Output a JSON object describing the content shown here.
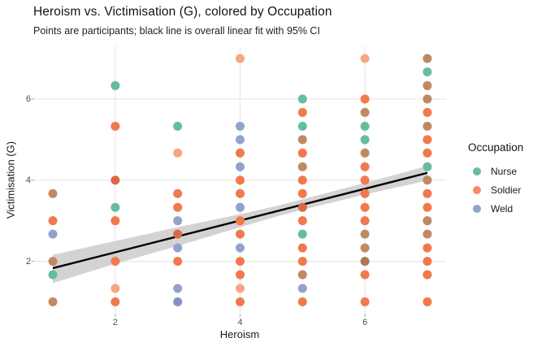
{
  "chart_data": {
    "type": "scatter",
    "title": "Heroism vs. Victimisation (G), colored by Occupation",
    "subtitle": "Points are participants; black line is overall linear fit with 95% CI",
    "xlabel": "Heroism",
    "ylabel": "Victimisation (G)",
    "xlim": [
      0.7,
      7.3
    ],
    "ylim": [
      0.7,
      7.3
    ],
    "x_ticks": [
      2,
      4,
      6
    ],
    "x_tick_labels": [
      "2",
      "4",
      "6"
    ],
    "y_ticks": [
      2,
      4,
      6
    ],
    "y_tick_labels": [
      "2",
      "4",
      "6"
    ],
    "grid": "major-only",
    "background": "#ffffff",
    "gridline_color": "#e8e8e8",
    "tick_mark_color": "#b3b3b3",
    "legend": {
      "title": "Occupation",
      "position": "right",
      "entries": [
        {
          "label": "Nurse",
          "color": "#66BD9D"
        },
        {
          "label": "Soldier",
          "color": "#F58A64"
        },
        {
          "label": "Weld",
          "color": "#92A2CD"
        }
      ]
    },
    "point_style": {
      "radius": 5.5,
      "shape": "circle"
    },
    "palette": {
      "N": {
        "occupation": "Nurse",
        "fill": "#66BD9D"
      },
      "S": {
        "occupation": "Soldier",
        "fill": "#F0794E"
      },
      "SL": {
        "occupation": "Soldier (lighter, single point)",
        "fill": "#F8A583"
      },
      "S2": {
        "occupation": "Soldier (darker, overplotted)",
        "fill": "#DC6845"
      },
      "W": {
        "occupation": "Weld",
        "fill": "#92A2CD"
      },
      "W2": {
        "occupation": "Weld (darker, overplotted)",
        "fill": "#8193C4"
      },
      "B": {
        "occupation": "Nurse+Soldier overlap",
        "fill": "#BE8A63"
      },
      "B2": {
        "occupation": "Nurse+Soldier overlap (darker)",
        "fill": "#AA7A52"
      }
    },
    "points": [
      [
        1,
        3.67,
        "B"
      ],
      [
        1,
        3,
        "S"
      ],
      [
        1,
        2.67,
        "W"
      ],
      [
        1,
        2,
        "B"
      ],
      [
        1,
        1.67,
        "N"
      ],
      [
        1,
        1,
        "B"
      ],
      [
        2,
        6.33,
        "N"
      ],
      [
        2,
        5.33,
        "S"
      ],
      [
        2,
        4,
        "S2"
      ],
      [
        2,
        3.33,
        "N"
      ],
      [
        2,
        3,
        "S"
      ],
      [
        2,
        2,
        "S"
      ],
      [
        2,
        1.33,
        "SL"
      ],
      [
        2,
        1,
        "S"
      ],
      [
        3,
        5.33,
        "N"
      ],
      [
        3,
        4.67,
        "SL"
      ],
      [
        3,
        3.67,
        "S"
      ],
      [
        3,
        3.33,
        "S"
      ],
      [
        3,
        3,
        "W"
      ],
      [
        3,
        2.67,
        "S2"
      ],
      [
        3,
        2.33,
        "W"
      ],
      [
        3,
        2,
        "S"
      ],
      [
        3,
        1.33,
        "W"
      ],
      [
        3,
        1,
        "W2"
      ],
      [
        4,
        7,
        "SL"
      ],
      [
        4,
        5.33,
        "W"
      ],
      [
        4,
        5,
        "W"
      ],
      [
        4,
        4.67,
        "S"
      ],
      [
        4,
        4.33,
        "W"
      ],
      [
        4,
        4,
        "S"
      ],
      [
        4,
        3.67,
        "S"
      ],
      [
        4,
        3.33,
        "W"
      ],
      [
        4,
        3,
        "S"
      ],
      [
        4,
        2.67,
        "S"
      ],
      [
        4,
        2.33,
        "W"
      ],
      [
        4,
        2,
        "S"
      ],
      [
        4,
        1.67,
        "S"
      ],
      [
        4,
        1.33,
        "SL"
      ],
      [
        4,
        1,
        "S"
      ],
      [
        5,
        6,
        "N"
      ],
      [
        5,
        5.67,
        "S"
      ],
      [
        5,
        5.33,
        "N"
      ],
      [
        5,
        5,
        "B"
      ],
      [
        5,
        4.67,
        "S"
      ],
      [
        5,
        4.33,
        "B"
      ],
      [
        5,
        4,
        "S"
      ],
      [
        5,
        3.67,
        "S"
      ],
      [
        5,
        3.33,
        "S2"
      ],
      [
        5,
        3,
        "S"
      ],
      [
        5,
        2.67,
        "N"
      ],
      [
        5,
        2.33,
        "S"
      ],
      [
        5,
        2,
        "S"
      ],
      [
        5,
        1.67,
        "B"
      ],
      [
        5,
        1.33,
        "W"
      ],
      [
        5,
        1,
        "S"
      ],
      [
        6,
        7,
        "SL"
      ],
      [
        6,
        6,
        "S"
      ],
      [
        6,
        5.67,
        "B"
      ],
      [
        6,
        5.33,
        "N"
      ],
      [
        6,
        5,
        "N"
      ],
      [
        6,
        4.67,
        "B"
      ],
      [
        6,
        4.33,
        "S"
      ],
      [
        6,
        4,
        "S"
      ],
      [
        6,
        3.67,
        "S"
      ],
      [
        6,
        3.33,
        "S"
      ],
      [
        6,
        3,
        "S"
      ],
      [
        6,
        2.67,
        "B"
      ],
      [
        6,
        2.33,
        "B"
      ],
      [
        6,
        2,
        "B2"
      ],
      [
        6,
        1.67,
        "S"
      ],
      [
        6,
        1,
        "S"
      ],
      [
        7,
        7,
        "B"
      ],
      [
        7,
        6.67,
        "N"
      ],
      [
        7,
        6.33,
        "B"
      ],
      [
        7,
        6,
        "B"
      ],
      [
        7,
        5.67,
        "S"
      ],
      [
        7,
        5.33,
        "B"
      ],
      [
        7,
        5,
        "S"
      ],
      [
        7,
        4.67,
        "S"
      ],
      [
        7,
        4.33,
        "N"
      ],
      [
        7,
        4,
        "B"
      ],
      [
        7,
        3.67,
        "S"
      ],
      [
        7,
        3.33,
        "S"
      ],
      [
        7,
        3,
        "B"
      ],
      [
        7,
        2.67,
        "B"
      ],
      [
        7,
        2.33,
        "S"
      ],
      [
        7,
        2,
        "S"
      ],
      [
        7,
        1.67,
        "S"
      ],
      [
        7,
        1,
        "S"
      ]
    ],
    "fit_line": {
      "color": "#000000",
      "width": 2.4,
      "x": [
        1,
        7
      ],
      "y": [
        1.83,
        4.18
      ],
      "slope": 0.392,
      "intercept": 1.44
    },
    "ci_band": {
      "color": "#d3d3d3",
      "level": "95%",
      "x": [
        1,
        2,
        3,
        4,
        4.6,
        5,
        6,
        7
      ],
      "upper": [
        2.16,
        2.5,
        2.84,
        3.16,
        3.37,
        3.53,
        3.93,
        4.35
      ],
      "lower": [
        1.46,
        1.94,
        2.38,
        2.84,
        3.11,
        3.27,
        3.65,
        3.99
      ]
    }
  }
}
